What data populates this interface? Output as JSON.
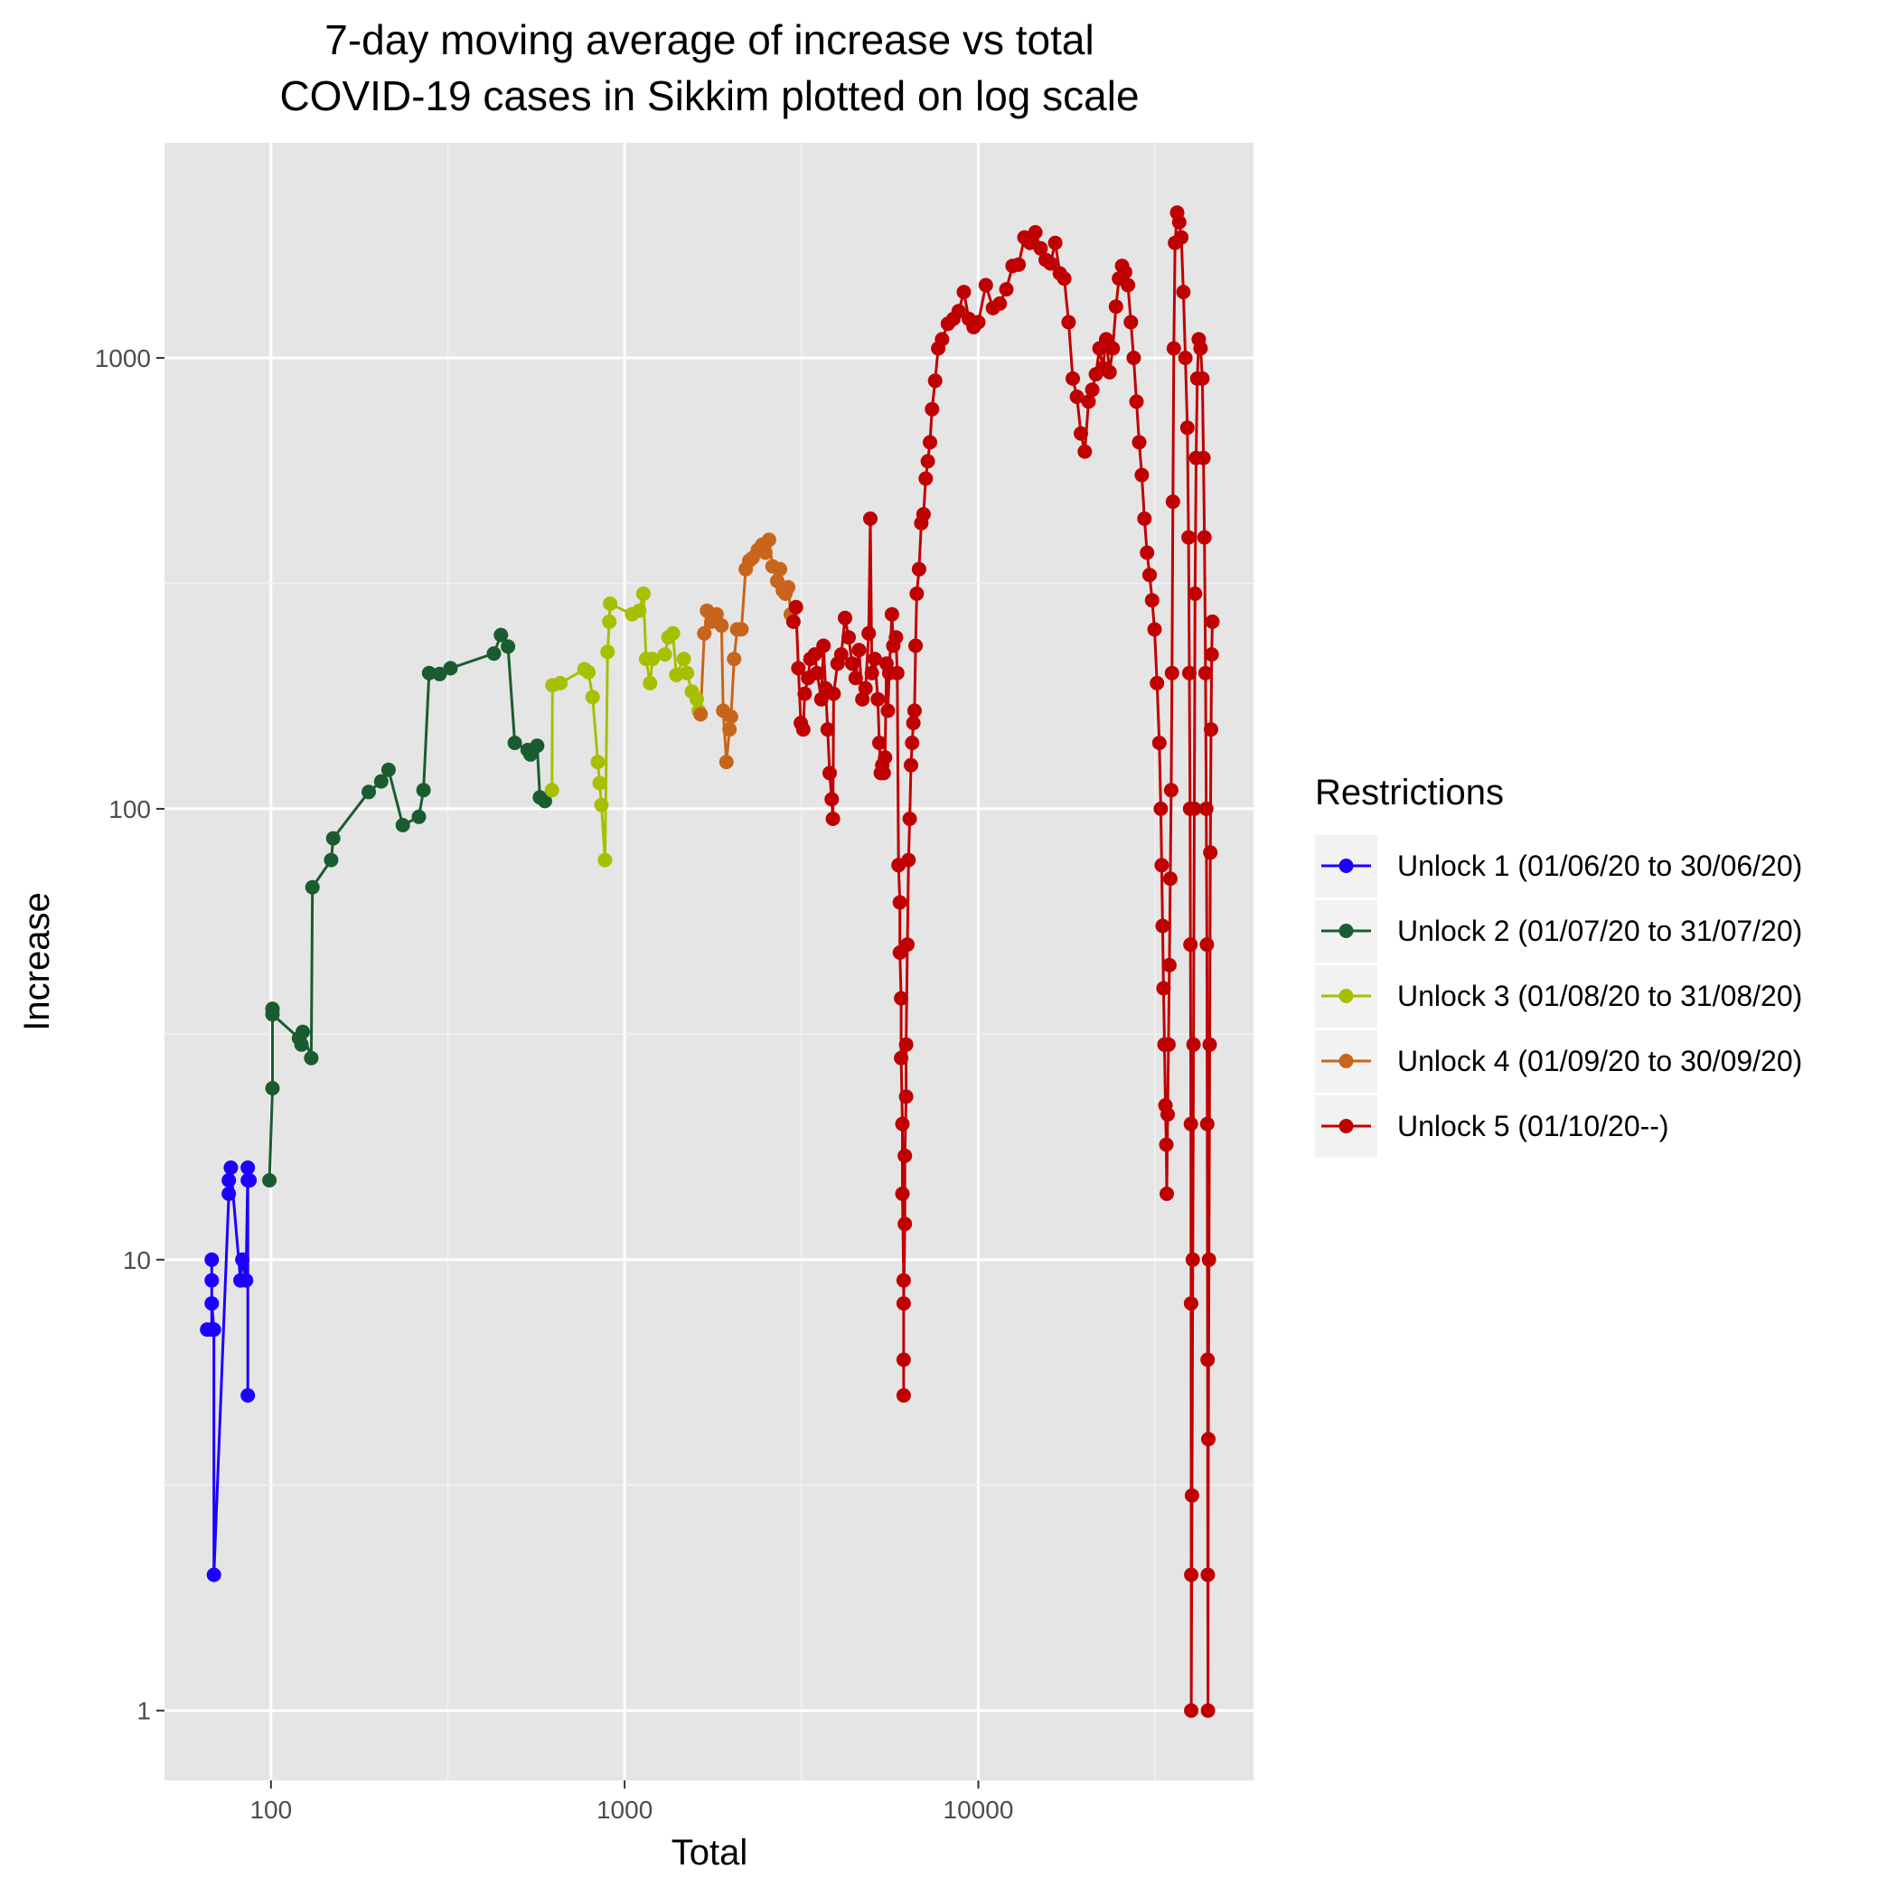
{
  "chart_data": {
    "type": "line",
    "title": [
      "7-day moving average of increase vs total",
      "COVID-19 cases in Sikkim plotted on log scale"
    ],
    "xlabel": "Total",
    "ylabel": "Increase",
    "x_scale": "log10",
    "y_scale": "log10",
    "xlim": [
      50,
      60000
    ],
    "ylim": [
      0.7,
      3000
    ],
    "x_ticks": [
      100,
      1000,
      10000
    ],
    "x_tick_labels": [
      "100",
      "1000",
      "10000"
    ],
    "y_ticks": [
      1,
      10,
      100,
      1000
    ],
    "y_tick_labels": [
      "1",
      "10",
      "100",
      "1000"
    ],
    "grid": true,
    "markers": true,
    "legend": {
      "title": "Restrictions",
      "position": "right"
    },
    "series": [
      {
        "name": "Unlock 1 (01/06/20 to 30/06/20)",
        "color": "#1c00ff",
        "points": [
          [
            66,
            7
          ],
          [
            68,
            7
          ],
          [
            68,
            10
          ],
          [
            68,
            9
          ],
          [
            68,
            8
          ],
          [
            69,
            7
          ],
          [
            69,
            2
          ],
          [
            76,
            14
          ],
          [
            76,
            15
          ],
          [
            77,
            16
          ],
          [
            82,
            9
          ],
          [
            83,
            10
          ],
          [
            85,
            9
          ],
          [
            86,
            16
          ],
          [
            86,
            5
          ],
          [
            86,
            15
          ],
          [
            87,
            15
          ]
        ]
      },
      {
        "name": "Unlock 2 (01/07/20 to 31/07/20)",
        "color": "#1a5c30",
        "points": [
          [
            99,
            15
          ],
          [
            101,
            24
          ],
          [
            101,
            36
          ],
          [
            101,
            35
          ],
          [
            120,
            31
          ],
          [
            122,
            30
          ],
          [
            123,
            32
          ],
          [
            130,
            28
          ],
          [
            131,
            67
          ],
          [
            148,
            77
          ],
          [
            150,
            86
          ],
          [
            189,
            109
          ],
          [
            205,
            115
          ],
          [
            215,
            122
          ],
          [
            236,
            92
          ],
          [
            262,
            96
          ],
          [
            270,
            110
          ],
          [
            280,
            200
          ],
          [
            300,
            199
          ],
          [
            322,
            205
          ],
          [
            427,
            221
          ],
          [
            447,
            243
          ],
          [
            468,
            229
          ],
          [
            489,
            140
          ],
          [
            532,
            135
          ],
          [
            542,
            132
          ],
          [
            566,
            138
          ],
          [
            576,
            106
          ],
          [
            595,
            104
          ]
        ]
      },
      {
        "name": "Unlock 3 (01/08/20 to 31/08/20)",
        "color": "#a6c000",
        "points": [
          [
            623,
            110
          ],
          [
            625,
            188
          ],
          [
            658,
            190
          ],
          [
            770,
            204
          ],
          [
            790,
            201
          ],
          [
            812,
            177
          ],
          [
            840,
            127
          ],
          [
            850,
            114
          ],
          [
            860,
            102
          ],
          [
            880,
            77
          ],
          [
            895,
            223
          ],
          [
            905,
            260
          ],
          [
            910,
            285
          ],
          [
            1050,
            270
          ],
          [
            1100,
            275
          ],
          [
            1130,
            300
          ],
          [
            1150,
            215
          ],
          [
            1180,
            190
          ],
          [
            1200,
            215
          ],
          [
            1300,
            220
          ],
          [
            1330,
            240
          ],
          [
            1370,
            245
          ],
          [
            1400,
            198
          ],
          [
            1470,
            215
          ],
          [
            1500,
            200
          ],
          [
            1550,
            182
          ],
          [
            1600,
            175
          ],
          [
            1620,
            165
          ]
        ]
      },
      {
        "name": "Unlock 4 (01/09/20 to 30/09/20)",
        "color": "#c8651c",
        "points": [
          [
            1640,
            162
          ],
          [
            1680,
            245
          ],
          [
            1710,
            275
          ],
          [
            1760,
            260
          ],
          [
            1820,
            270
          ],
          [
            1880,
            255
          ],
          [
            1900,
            165
          ],
          [
            1940,
            127
          ],
          [
            1980,
            150
          ],
          [
            2000,
            160
          ],
          [
            2040,
            215
          ],
          [
            2080,
            250
          ],
          [
            2140,
            250
          ],
          [
            2200,
            340
          ],
          [
            2250,
            355
          ],
          [
            2300,
            360
          ],
          [
            2380,
            375
          ],
          [
            2450,
            385
          ],
          [
            2500,
            370
          ],
          [
            2560,
            395
          ],
          [
            2620,
            345
          ],
          [
            2700,
            320
          ],
          [
            2750,
            340
          ],
          [
            2800,
            305
          ],
          [
            2850,
            300
          ],
          [
            2900,
            310
          ],
          [
            2950,
            270
          ]
        ]
      },
      {
        "name": "Unlock 5 (01/10/20--)",
        "color": "#c00000",
        "points": [
          [
            3000,
            260
          ],
          [
            3050,
            280
          ],
          [
            3100,
            205
          ],
          [
            3150,
            155
          ],
          [
            3200,
            150
          ],
          [
            3230,
            180
          ],
          [
            3300,
            195
          ],
          [
            3350,
            215
          ],
          [
            3450,
            220
          ],
          [
            3500,
            200
          ],
          [
            3600,
            175
          ],
          [
            3650,
            230
          ],
          [
            3700,
            185
          ],
          [
            3750,
            150
          ],
          [
            3800,
            120
          ],
          [
            3850,
            105
          ],
          [
            3880,
            95
          ],
          [
            3900,
            180
          ],
          [
            4000,
            210
          ],
          [
            4100,
            220
          ],
          [
            4200,
            265
          ],
          [
            4300,
            240
          ],
          [
            4400,
            210
          ],
          [
            4500,
            195
          ],
          [
            4600,
            225
          ],
          [
            4700,
            175
          ],
          [
            4800,
            185
          ],
          [
            4900,
            245
          ],
          [
            4950,
            440
          ],
          [
            5000,
            200
          ],
          [
            5100,
            215
          ],
          [
            5200,
            175
          ],
          [
            5250,
            140
          ],
          [
            5300,
            120
          ],
          [
            5350,
            125
          ],
          [
            5400,
            120
          ],
          [
            5450,
            130
          ],
          [
            5500,
            210
          ],
          [
            5550,
            165
          ],
          [
            5600,
            200
          ],
          [
            5700,
            270
          ],
          [
            5750,
            230
          ],
          [
            5850,
            240
          ],
          [
            5900,
            200
          ],
          [
            5950,
            75
          ],
          [
            6000,
            62
          ],
          [
            6000,
            48
          ],
          [
            6050,
            38
          ],
          [
            6050,
            28
          ],
          [
            6100,
            20
          ],
          [
            6100,
            14
          ],
          [
            6150,
            9
          ],
          [
            6150,
            6
          ],
          [
            6150,
            5
          ],
          [
            6150,
            8
          ],
          [
            6200,
            12
          ],
          [
            6200,
            17
          ],
          [
            6250,
            23
          ],
          [
            6250,
            30
          ],
          [
            6300,
            50
          ],
          [
            6350,
            77
          ],
          [
            6400,
            95
          ],
          [
            6450,
            125
          ],
          [
            6500,
            140
          ],
          [
            6550,
            155
          ],
          [
            6600,
            165
          ],
          [
            6650,
            230
          ],
          [
            6700,
            300
          ],
          [
            6800,
            340
          ],
          [
            6900,
            430
          ],
          [
            7000,
            450
          ],
          [
            7100,
            540
          ],
          [
            7200,
            590
          ],
          [
            7300,
            650
          ],
          [
            7400,
            770
          ],
          [
            7550,
            890
          ],
          [
            7700,
            1050
          ],
          [
            7900,
            1100
          ],
          [
            8200,
            1190
          ],
          [
            8500,
            1220
          ],
          [
            8800,
            1270
          ],
          [
            9100,
            1400
          ],
          [
            9400,
            1220
          ],
          [
            9700,
            1170
          ],
          [
            10000,
            1200
          ],
          [
            10500,
            1450
          ],
          [
            11000,
            1290
          ],
          [
            11500,
            1320
          ],
          [
            12000,
            1420
          ],
          [
            12500,
            1600
          ],
          [
            13000,
            1610
          ],
          [
            13500,
            1850
          ],
          [
            14000,
            1800
          ],
          [
            14500,
            1900
          ],
          [
            15000,
            1750
          ],
          [
            15500,
            1650
          ],
          [
            16000,
            1620
          ],
          [
            16500,
            1800
          ],
          [
            17000,
            1540
          ],
          [
            17500,
            1500
          ],
          [
            18000,
            1200
          ],
          [
            18500,
            900
          ],
          [
            19000,
            820
          ],
          [
            19500,
            680
          ],
          [
            20000,
            620
          ],
          [
            20500,
            800
          ],
          [
            21000,
            850
          ],
          [
            21500,
            920
          ],
          [
            22000,
            1050
          ],
          [
            22500,
            950
          ],
          [
            23000,
            1100
          ],
          [
            23500,
            930
          ],
          [
            24000,
            1050
          ],
          [
            24500,
            1300
          ],
          [
            25000,
            1500
          ],
          [
            25500,
            1600
          ],
          [
            26000,
            1550
          ],
          [
            26500,
            1450
          ],
          [
            27000,
            1200
          ],
          [
            27500,
            1000
          ],
          [
            28000,
            800
          ],
          [
            28500,
            650
          ],
          [
            29000,
            550
          ],
          [
            29500,
            440
          ],
          [
            30000,
            370
          ],
          [
            30500,
            330
          ],
          [
            31000,
            290
          ],
          [
            31500,
            250
          ],
          [
            32000,
            190
          ],
          [
            32500,
            140
          ],
          [
            32800,
            100
          ],
          [
            33000,
            75
          ],
          [
            33200,
            55
          ],
          [
            33400,
            40
          ],
          [
            33600,
            30
          ],
          [
            33800,
            22
          ],
          [
            34000,
            18
          ],
          [
            34100,
            14
          ],
          [
            34300,
            21
          ],
          [
            34500,
            30
          ],
          [
            34700,
            45
          ],
          [
            34900,
            70
          ],
          [
            35100,
            110
          ],
          [
            35300,
            200
          ],
          [
            35500,
            480
          ],
          [
            35700,
            1050
          ],
          [
            36000,
            1800
          ],
          [
            36500,
            2100
          ],
          [
            37000,
            2000
          ],
          [
            37500,
            1850
          ],
          [
            38000,
            1400
          ],
          [
            38500,
            1000
          ],
          [
            39000,
            700
          ],
          [
            39300,
            400
          ],
          [
            39500,
            200
          ],
          [
            39700,
            100
          ],
          [
            39800,
            50
          ],
          [
            39900,
            20
          ],
          [
            39950,
            8
          ],
          [
            40000,
            2
          ],
          [
            40000,
            1
          ],
          [
            40200,
            3
          ],
          [
            40400,
            10
          ],
          [
            40600,
            30
          ],
          [
            40800,
            100
          ],
          [
            41000,
            300
          ],
          [
            41300,
            600
          ],
          [
            41600,
            900
          ],
          [
            42000,
            1100
          ],
          [
            42500,
            1050
          ],
          [
            43000,
            900
          ],
          [
            43300,
            600
          ],
          [
            43600,
            400
          ],
          [
            43900,
            200
          ],
          [
            44100,
            100
          ],
          [
            44300,
            50
          ],
          [
            44400,
            20
          ],
          [
            44500,
            6
          ],
          [
            44550,
            2
          ],
          [
            44600,
            1
          ],
          [
            44700,
            4
          ],
          [
            44900,
            10
          ],
          [
            45100,
            30
          ],
          [
            45300,
            80
          ],
          [
            45500,
            150
          ],
          [
            45700,
            220
          ],
          [
            45900,
            260
          ]
        ]
      }
    ]
  }
}
